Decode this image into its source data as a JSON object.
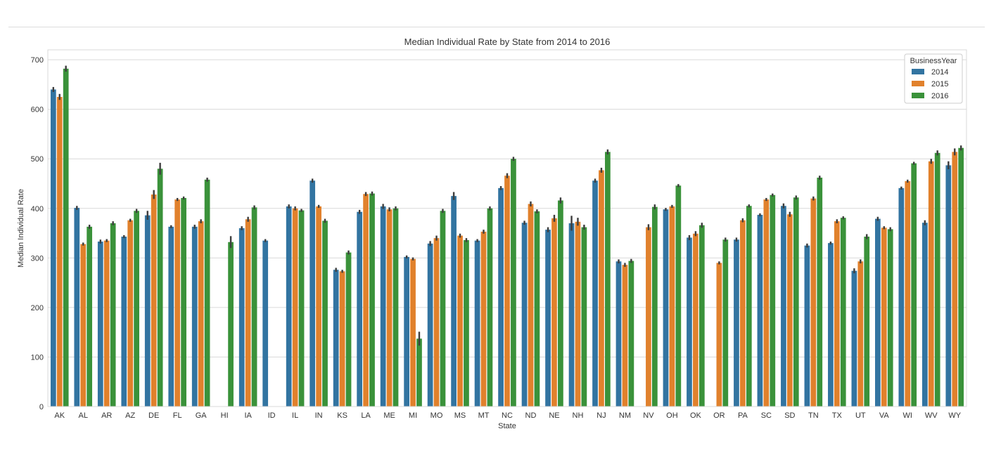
{
  "chart_data": {
    "type": "bar",
    "title": "Median Individual Rate by State from 2014 to 2016",
    "xlabel": "State",
    "ylabel": "Median Individual Rate",
    "ylim": [
      0,
      720
    ],
    "yticks": [
      0,
      100,
      200,
      300,
      400,
      500,
      600,
      700
    ],
    "grid": true,
    "legend": {
      "title": "BusinessYear",
      "placement": "top-right"
    },
    "categories": [
      "AK",
      "AL",
      "AR",
      "AZ",
      "DE",
      "FL",
      "GA",
      "HI",
      "IA",
      "ID",
      "IL",
      "IN",
      "KS",
      "LA",
      "ME",
      "MI",
      "MO",
      "MS",
      "MT",
      "NC",
      "ND",
      "NE",
      "NH",
      "NJ",
      "NM",
      "NV",
      "OH",
      "OK",
      "OR",
      "PA",
      "SC",
      "SD",
      "TN",
      "TX",
      "UT",
      "VA",
      "WI",
      "WV",
      "WY"
    ],
    "series": [
      {
        "name": "2014",
        "color": "#3274a1",
        "values": [
          640,
          401,
          333,
          343,
          386,
          363,
          363,
          null,
          360,
          335,
          404,
          456,
          276,
          393,
          404,
          302,
          329,
          425,
          335,
          441,
          371,
          357,
          370,
          456,
          293,
          null,
          398,
          341,
          null,
          337,
          387,
          405,
          325,
          330,
          274,
          379,
          441,
          371,
          487
        ],
        "errors": [
          5,
          4,
          4,
          3,
          9,
          3,
          4,
          null,
          4,
          3,
          4,
          4,
          4,
          4,
          5,
          3,
          5,
          8,
          3,
          4,
          4,
          5,
          15,
          4,
          4,
          null,
          3,
          5,
          null,
          4,
          3,
          5,
          4,
          3,
          5,
          4,
          3,
          5,
          8
        ]
      },
      {
        "name": "2015",
        "color": "#e1812c",
        "values": [
          625,
          328,
          335,
          376,
          428,
          418,
          374,
          null,
          378,
          null,
          400,
          404,
          273,
          429,
          398,
          298,
          340,
          345,
          353,
          466,
          409,
          380,
          373,
          477,
          286,
          362,
          404,
          349,
          290,
          376,
          418,
          388,
          420,
          374,
          293,
          361,
          455,
          495,
          514
        ],
        "errors": [
          6,
          3,
          3,
          3,
          9,
          3,
          4,
          null,
          5,
          null,
          4,
          3,
          3,
          4,
          4,
          3,
          5,
          4,
          4,
          5,
          5,
          7,
          8,
          5,
          4,
          6,
          3,
          5,
          3,
          4,
          3,
          5,
          4,
          4,
          4,
          3,
          3,
          5,
          7
        ]
      },
      {
        "name": "2016",
        "color": "#3a923a",
        "values": [
          682,
          363,
          370,
          395,
          480,
          421,
          458,
          332,
          402,
          null,
          396,
          375,
          311,
          430,
          400,
          137,
          395,
          336,
          400,
          500,
          394,
          416,
          362,
          514,
          294,
          403,
          446,
          366,
          337,
          405,
          427,
          422,
          462,
          381,
          343,
          358,
          491,
          512,
          522
        ],
        "errors": [
          6,
          4,
          4,
          4,
          12,
          3,
          4,
          12,
          4,
          null,
          3,
          4,
          4,
          4,
          4,
          14,
          4,
          4,
          4,
          4,
          4,
          6,
          5,
          5,
          4,
          5,
          3,
          5,
          4,
          3,
          3,
          4,
          4,
          3,
          5,
          4,
          3,
          5,
          5
        ]
      }
    ]
  }
}
